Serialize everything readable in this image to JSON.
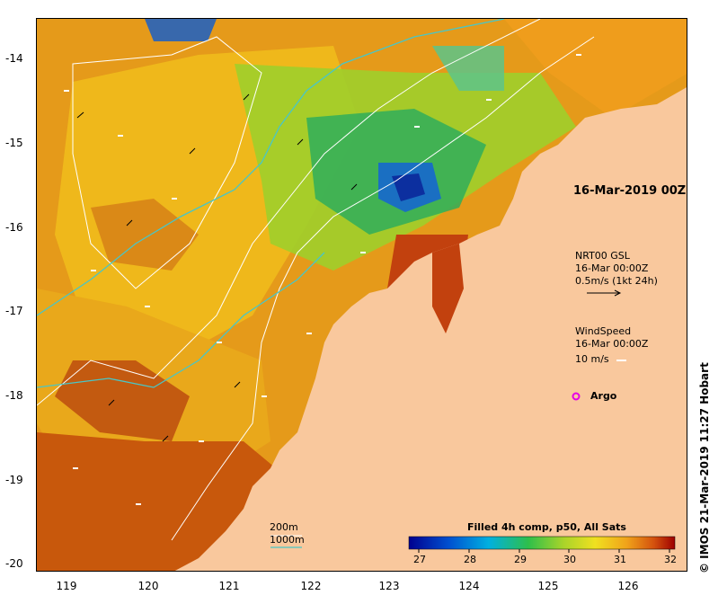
{
  "map": {
    "date_label": "16-Mar-2019 00Z",
    "current_title": "NRT00 GSL",
    "current_time": "16-Mar 00:00Z",
    "current_scale": "0.5m/s (1kt 24h)",
    "wind_title": "WindSpeed",
    "wind_time": "16-Mar 00:00Z",
    "wind_scale": "10 m/s",
    "argo_label": "Argo",
    "depth_200": "200m",
    "depth_1000": "1000m",
    "credit": "© IMOS 21-Mar-2019 11:27 Hobart"
  },
  "axes": {
    "y_ticks": [
      "-14",
      "-15",
      "-16",
      "-17",
      "-18",
      "-19",
      "-20"
    ],
    "x_ticks": [
      "119",
      "120",
      "121",
      "122",
      "123",
      "124",
      "125",
      "126"
    ]
  },
  "colorbar": {
    "title": "Filled 4h comp, p50, All Sats",
    "ticks": [
      "27",
      "28",
      "29",
      "30",
      "31",
      "32"
    ],
    "range": [
      26.6,
      32.3
    ]
  },
  "colors": {
    "land": "#f9c89d",
    "isobath_200": "#ffffff",
    "isobath_1000": "#49c6c6",
    "argo": "#e600e6"
  }
}
